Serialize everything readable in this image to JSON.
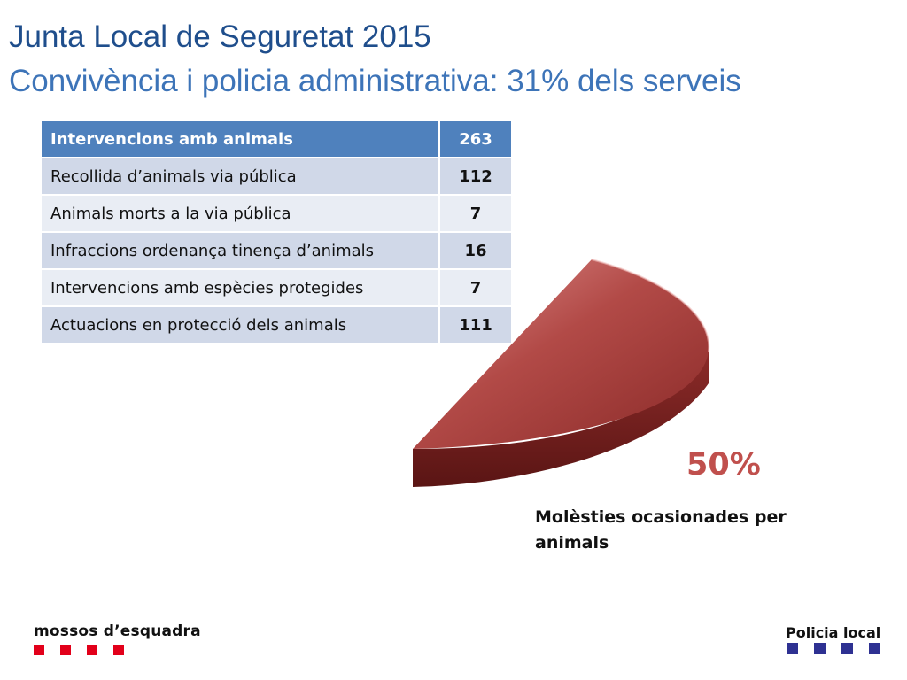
{
  "header": {
    "title": "Junta Local de Seguretat 2015",
    "subtitle": "Convivència i policia administrativa: 31% dels serveis"
  },
  "table": {
    "header": {
      "label": "Intervencions amb animals",
      "value": "263"
    },
    "rows": [
      {
        "label": "Recollida d’animals via pública",
        "value": "112"
      },
      {
        "label": "Animals morts a la via pública",
        "value": "7"
      },
      {
        "label": "Infraccions ordenança tinença d’animals",
        "value": "16"
      },
      {
        "label": "Intervencions amb espècies protegides",
        "value": "7"
      },
      {
        "label": "Actuacions en protecció dels animals",
        "value": "111"
      }
    ]
  },
  "chart": {
    "percent_label": "50%",
    "caption": "Molèsties ocasionades per animals"
  },
  "colors": {
    "title": "#1f4e8c",
    "subtitle": "#3d74b8",
    "table_header": "#4f81bd",
    "pie_slice": "#9b3330",
    "percent": "#c0504d",
    "logo_left_squares": "#e2001a",
    "logo_right_squares": "#2e3192"
  },
  "footer": {
    "left_logo": "mossos d’esquadra",
    "right_logo": "Policia local"
  }
}
